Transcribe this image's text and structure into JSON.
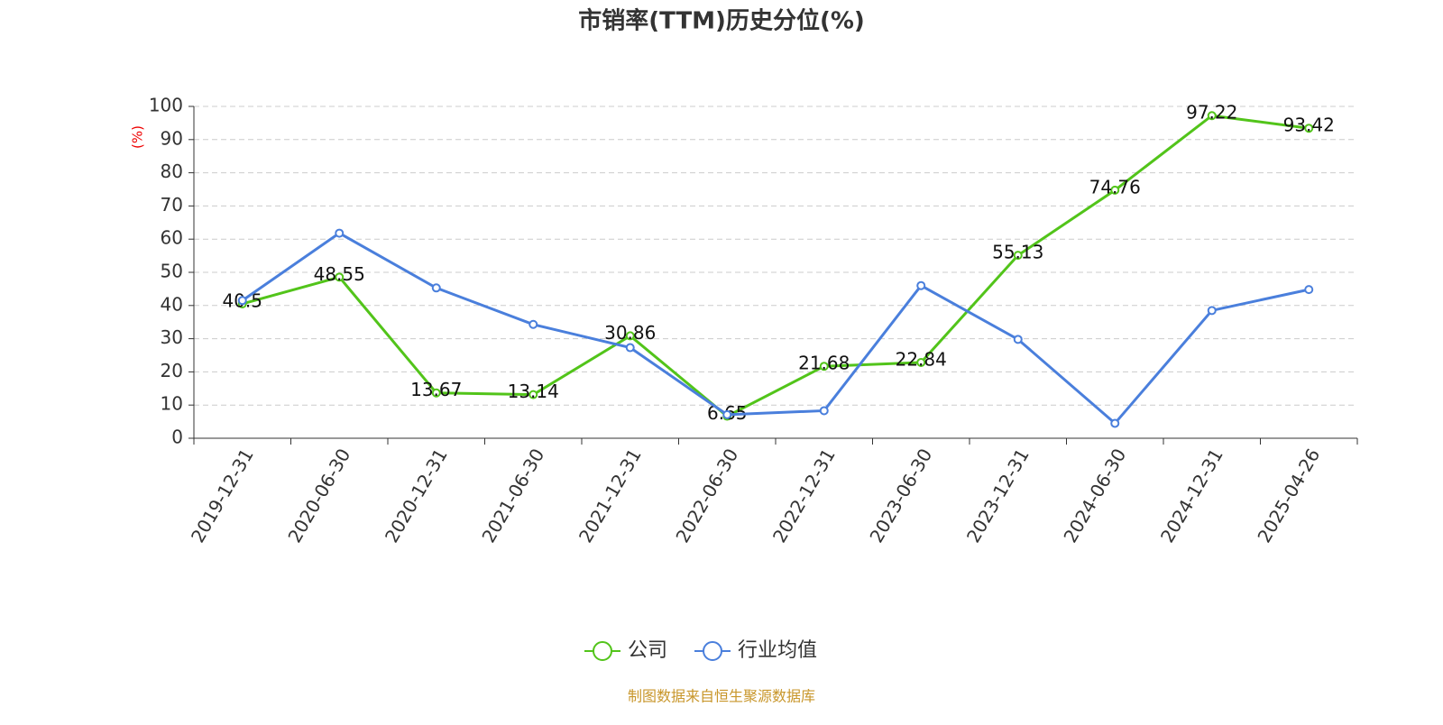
{
  "chart_data": {
    "type": "line",
    "title": "市销率(TTM)历史分位(%)",
    "y_label": "(%)",
    "source": "制图数据来自恒生聚源数据库",
    "categories": [
      "2019-12-31",
      "2020-06-30",
      "2020-12-31",
      "2021-06-30",
      "2021-12-31",
      "2022-06-30",
      "2022-12-31",
      "2023-06-30",
      "2023-12-31",
      "2024-06-30",
      "2024-12-31",
      "2025-04-26"
    ],
    "series": [
      {
        "name": "公司",
        "color": "#52c41a",
        "values": [
          40.5,
          48.55,
          13.67,
          13.14,
          30.86,
          6.65,
          21.68,
          22.84,
          55.13,
          74.76,
          97.22,
          93.42
        ],
        "data_labels": true
      },
      {
        "name": "行业均值",
        "color": "#4a7fdc",
        "values": [
          41.5,
          61.8,
          45.3,
          34.3,
          27.3,
          7.1,
          8.3,
          46.0,
          29.8,
          4.5,
          38.5,
          44.8
        ],
        "data_labels": false
      }
    ],
    "ylim": [
      0,
      100
    ],
    "yticks": [
      0,
      10,
      20,
      30,
      40,
      50,
      60,
      70,
      80,
      90,
      100
    ],
    "grid": true,
    "legend": "bottom"
  }
}
